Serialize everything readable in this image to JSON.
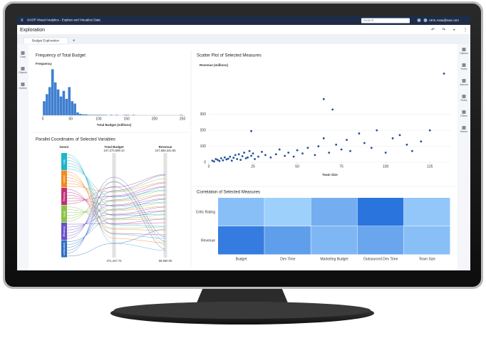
{
  "app": {
    "title": "SAS® Visual Analytics - Explore and Visualize Data",
    "search": "Search",
    "user": "Atrin.Assa@sas.com",
    "page_title": "Exploration",
    "tab": "Budget Exploration",
    "add_tab": "+",
    "left_panel": [
      "Data",
      "Objects",
      "Outline"
    ],
    "right_panel": [
      "Options",
      "Roles",
      "Actions",
      "Rules",
      "Filters",
      "Ranks"
    ]
  },
  "chart_data": [
    {
      "type": "histogram",
      "title": "Frequency of Total Budget",
      "y_label": "Frequency",
      "x_label": "Total Budget (millions)",
      "color": "#3f7fd0",
      "bins": [
        0,
        5,
        10,
        15,
        20,
        25,
        30,
        35,
        40,
        45,
        50,
        55,
        60,
        65,
        70,
        75,
        80,
        85,
        90,
        95,
        100,
        105,
        110,
        115,
        120,
        125,
        130,
        135,
        140,
        145,
        150,
        155,
        160,
        165,
        170,
        175,
        180,
        185,
        190,
        195,
        200,
        205,
        210,
        215,
        220,
        225,
        230,
        235,
        240,
        245,
        250
      ],
      "counts": [
        30,
        45,
        60,
        98,
        70,
        55,
        40,
        52,
        35,
        60,
        30,
        25,
        6,
        3,
        2,
        2,
        1,
        1,
        1,
        1,
        1,
        1,
        1,
        0,
        1,
        0,
        1,
        0,
        0,
        1,
        1,
        0,
        1,
        0,
        0,
        0,
        0,
        0,
        0,
        0,
        0,
        0,
        0,
        0,
        0,
        0,
        0,
        0,
        0,
        1
      ],
      "xlim": [
        0,
        255
      ],
      "ylim": [
        0,
        100
      ],
      "xticks": [
        0,
        50,
        100,
        150,
        200,
        250
      ]
    },
    {
      "type": "scatter",
      "title": "Scatter Plot of Selected Measures",
      "y_label": "Revenue (millions)",
      "x_label": "Team Size",
      "color": "#1f4f9a",
      "x": [
        2,
        3,
        4,
        5,
        6,
        7,
        8,
        9,
        10,
        11,
        12,
        13,
        14,
        15,
        16,
        17,
        18,
        19,
        20,
        21,
        22,
        23,
        24,
        24,
        25,
        26,
        28,
        30,
        32,
        35,
        38,
        40,
        43,
        45,
        48,
        50,
        53,
        56,
        60,
        62,
        65,
        65,
        68,
        70,
        72,
        75,
        78,
        80,
        85,
        88,
        92,
        95,
        100,
        104,
        108,
        112,
        115,
        120,
        125,
        133
      ],
      "y": [
        10,
        5,
        20,
        15,
        8,
        25,
        12,
        30,
        18,
        22,
        35,
        10,
        28,
        45,
        20,
        50,
        15,
        38,
        60,
        25,
        30,
        70,
        195,
        40,
        55,
        20,
        35,
        65,
        45,
        30,
        50,
        80,
        40,
        60,
        35,
        75,
        55,
        90,
        45,
        100,
        395,
        150,
        60,
        330,
        110,
        80,
        140,
        70,
        180,
        120,
        90,
        200,
        60,
        150,
        170,
        110,
        70,
        130,
        200,
        555
      ],
      "xlim": [
        0,
        137
      ],
      "ylim": [
        0,
        570
      ],
      "xticks": [
        0,
        25,
        50,
        75,
        100,
        125
      ],
      "yticks": [
        0,
        100,
        200,
        300
      ],
      "grid": true
    },
    {
      "type": "parallel",
      "title": "Parallel Coordinates of Selected Variables",
      "axes": [
        {
          "name": "Genre"
        },
        {
          "name": "Total Budget",
          "max": "247,270,599.10",
          "min": "471,447.73"
        },
        {
          "name": "Revenue",
          "max": "247,659,344.65",
          "min": "58,950.00"
        }
      ],
      "genres": [
        {
          "name": "Sim",
          "color": "#1fb5c9"
        },
        {
          "name": "Action",
          "color": "#f08a24"
        },
        {
          "name": "Racing",
          "color": "#c0307a"
        },
        {
          "name": "RPG",
          "color": "#8bc34a"
        },
        {
          "name": "Strategy",
          "color": "#6a4fc9"
        },
        {
          "name": "Adventure",
          "color": "#2f6fc4"
        }
      ]
    },
    {
      "type": "heatmap",
      "title": "Correlation of Selected Measures",
      "x_categories": [
        "Budget",
        "Dev Time",
        "Marketing Budget",
        "Outsourced Dev Time",
        "Team Size"
      ],
      "y_categories": [
        "Critic Rating",
        "Revenue"
      ],
      "values": [
        [
          0.15,
          0.05,
          0.25,
          0.6,
          0.1
        ],
        [
          0.55,
          0.35,
          0.2,
          0.3,
          0.15
        ]
      ],
      "color_low": "#a9d8ff",
      "color_high": "#2a74dd"
    }
  ]
}
